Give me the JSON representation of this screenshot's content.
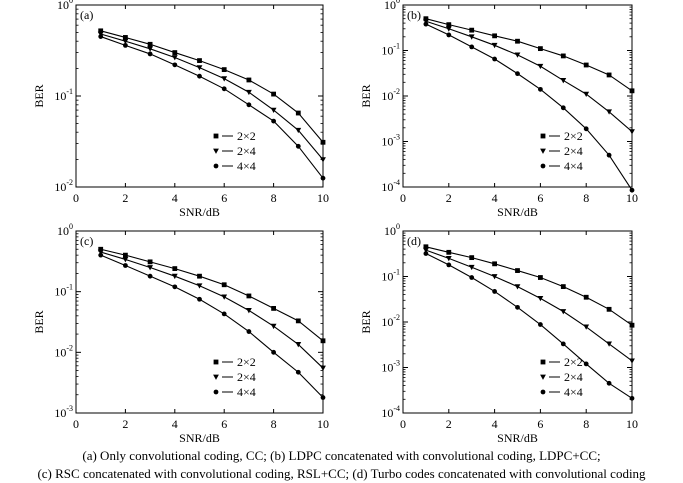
{
  "caption": {
    "line1": "(a)  Only convolutional coding, CC; (b) LDPC concatenated with convolutional coding, LDPC+CC;",
    "line2": "(c) RSC concatenated with convolutional coding, RSL+CC; (d) Turbo codes concatenated with convolutional coding"
  },
  "chart_data": [
    {
      "type": "line",
      "panel_label": "(a)",
      "xlabel": "SNR/dB",
      "ylabel": "BER",
      "xlim": [
        0,
        10
      ],
      "ylim": [
        0.01,
        1
      ],
      "yscale": "log",
      "x_ticks": [
        "0",
        "2",
        "4",
        "6",
        "8",
        "10"
      ],
      "y_ticks": [
        {
          "base": "10",
          "exp": "-2",
          "value": 0.01
        },
        {
          "base": "10",
          "exp": "-1",
          "value": 0.1
        },
        {
          "base": "10",
          "exp": "0",
          "value": 1
        }
      ],
      "legend_position": "lower-left-center",
      "x": [
        1,
        2,
        3,
        4,
        5,
        6,
        7,
        8,
        9,
        10
      ],
      "series": [
        {
          "name": "2×2",
          "marker": "square",
          "values": [
            0.52,
            0.44,
            0.37,
            0.3,
            0.245,
            0.195,
            0.15,
            0.105,
            0.065,
            0.031
          ]
        },
        {
          "name": "2×4",
          "marker": "triangle-down",
          "values": [
            0.48,
            0.4,
            0.33,
            0.265,
            0.205,
            0.155,
            0.11,
            0.07,
            0.042,
            0.02
          ]
        },
        {
          "name": "4×4",
          "marker": "circle",
          "values": [
            0.45,
            0.36,
            0.29,
            0.22,
            0.165,
            0.12,
            0.08,
            0.053,
            0.028,
            0.0125
          ]
        }
      ]
    },
    {
      "type": "line",
      "panel_label": "(b)",
      "xlabel": "SNR/dB",
      "ylabel": "BER",
      "xlim": [
        0,
        10
      ],
      "ylim": [
        0.0001,
        1
      ],
      "yscale": "log",
      "x_ticks": [
        "0",
        "2",
        "4",
        "6",
        "8",
        "10"
      ],
      "y_ticks": [
        {
          "base": "10",
          "exp": "-4",
          "value": 0.0001
        },
        {
          "base": "10",
          "exp": "-3",
          "value": 0.001
        },
        {
          "base": "10",
          "exp": "-2",
          "value": 0.01
        },
        {
          "base": "10",
          "exp": "-1",
          "value": 0.1
        },
        {
          "base": "10",
          "exp": "0",
          "value": 1
        }
      ],
      "legend_position": "lower-left-center",
      "x": [
        1,
        2,
        3,
        4,
        5,
        6,
        7,
        8,
        9,
        10
      ],
      "series": [
        {
          "name": "2×2",
          "marker": "square",
          "values": [
            0.5,
            0.37,
            0.28,
            0.21,
            0.16,
            0.11,
            0.076,
            0.048,
            0.029,
            0.013
          ]
        },
        {
          "name": "2×4",
          "marker": "triangle-down",
          "values": [
            0.44,
            0.3,
            0.2,
            0.13,
            0.08,
            0.045,
            0.022,
            0.011,
            0.0045,
            0.00165
          ]
        },
        {
          "name": "4×4",
          "marker": "circle",
          "values": [
            0.38,
            0.22,
            0.12,
            0.065,
            0.031,
            0.014,
            0.0055,
            0.0019,
            0.0005,
            8.5e-05
          ]
        }
      ]
    },
    {
      "type": "line",
      "panel_label": "(c)",
      "xlabel": "SNR/dB",
      "ylabel": "BER",
      "xlim": [
        0,
        10
      ],
      "ylim": [
        0.001,
        1
      ],
      "yscale": "log",
      "x_ticks": [
        "0",
        "2",
        "4",
        "6",
        "8",
        "10"
      ],
      "y_ticks": [
        {
          "base": "10",
          "exp": "-3",
          "value": 0.001
        },
        {
          "base": "10",
          "exp": "-2",
          "value": 0.01
        },
        {
          "base": "10",
          "exp": "-1",
          "value": 0.1
        },
        {
          "base": "10",
          "exp": "0",
          "value": 1
        }
      ],
      "legend_position": "lower-left-center",
      "x": [
        1,
        2,
        3,
        4,
        5,
        6,
        7,
        8,
        9,
        10
      ],
      "series": [
        {
          "name": "2×2",
          "marker": "square",
          "values": [
            0.5,
            0.4,
            0.31,
            0.24,
            0.18,
            0.13,
            0.085,
            0.053,
            0.033,
            0.0155
          ]
        },
        {
          "name": "2×4",
          "marker": "triangle-down",
          "values": [
            0.45,
            0.34,
            0.25,
            0.18,
            0.125,
            0.082,
            0.049,
            0.027,
            0.0135,
            0.0055
          ]
        },
        {
          "name": "4×4",
          "marker": "circle",
          "values": [
            0.4,
            0.27,
            0.18,
            0.12,
            0.075,
            0.043,
            0.022,
            0.01,
            0.0047,
            0.0018
          ]
        }
      ]
    },
    {
      "type": "line",
      "panel_label": "(d)",
      "xlabel": "SNR/dB",
      "ylabel": "BER",
      "xlim": [
        0,
        10
      ],
      "ylim": [
        0.0001,
        1
      ],
      "yscale": "log",
      "x_ticks": [
        "0",
        "2",
        "4",
        "6",
        "8",
        "10"
      ],
      "y_ticks": [
        {
          "base": "10",
          "exp": "-4",
          "value": 0.0001
        },
        {
          "base": "10",
          "exp": "-3",
          "value": 0.001
        },
        {
          "base": "10",
          "exp": "-2",
          "value": 0.01
        },
        {
          "base": "10",
          "exp": "-1",
          "value": 0.1
        },
        {
          "base": "10",
          "exp": "0",
          "value": 1
        }
      ],
      "legend_position": "lower-left-center",
      "x": [
        1,
        2,
        3,
        4,
        5,
        6,
        7,
        8,
        9,
        10
      ],
      "series": [
        {
          "name": "2×2",
          "marker": "square",
          "values": [
            0.45,
            0.34,
            0.26,
            0.19,
            0.135,
            0.095,
            0.06,
            0.035,
            0.019,
            0.0085
          ]
        },
        {
          "name": "2×4",
          "marker": "triangle-down",
          "values": [
            0.38,
            0.25,
            0.16,
            0.1,
            0.06,
            0.033,
            0.017,
            0.0078,
            0.0033,
            0.0014
          ]
        },
        {
          "name": "4×4",
          "marker": "circle",
          "values": [
            0.32,
            0.18,
            0.095,
            0.047,
            0.021,
            0.0088,
            0.0033,
            0.0012,
            0.00045,
            0.00021
          ]
        }
      ]
    }
  ]
}
